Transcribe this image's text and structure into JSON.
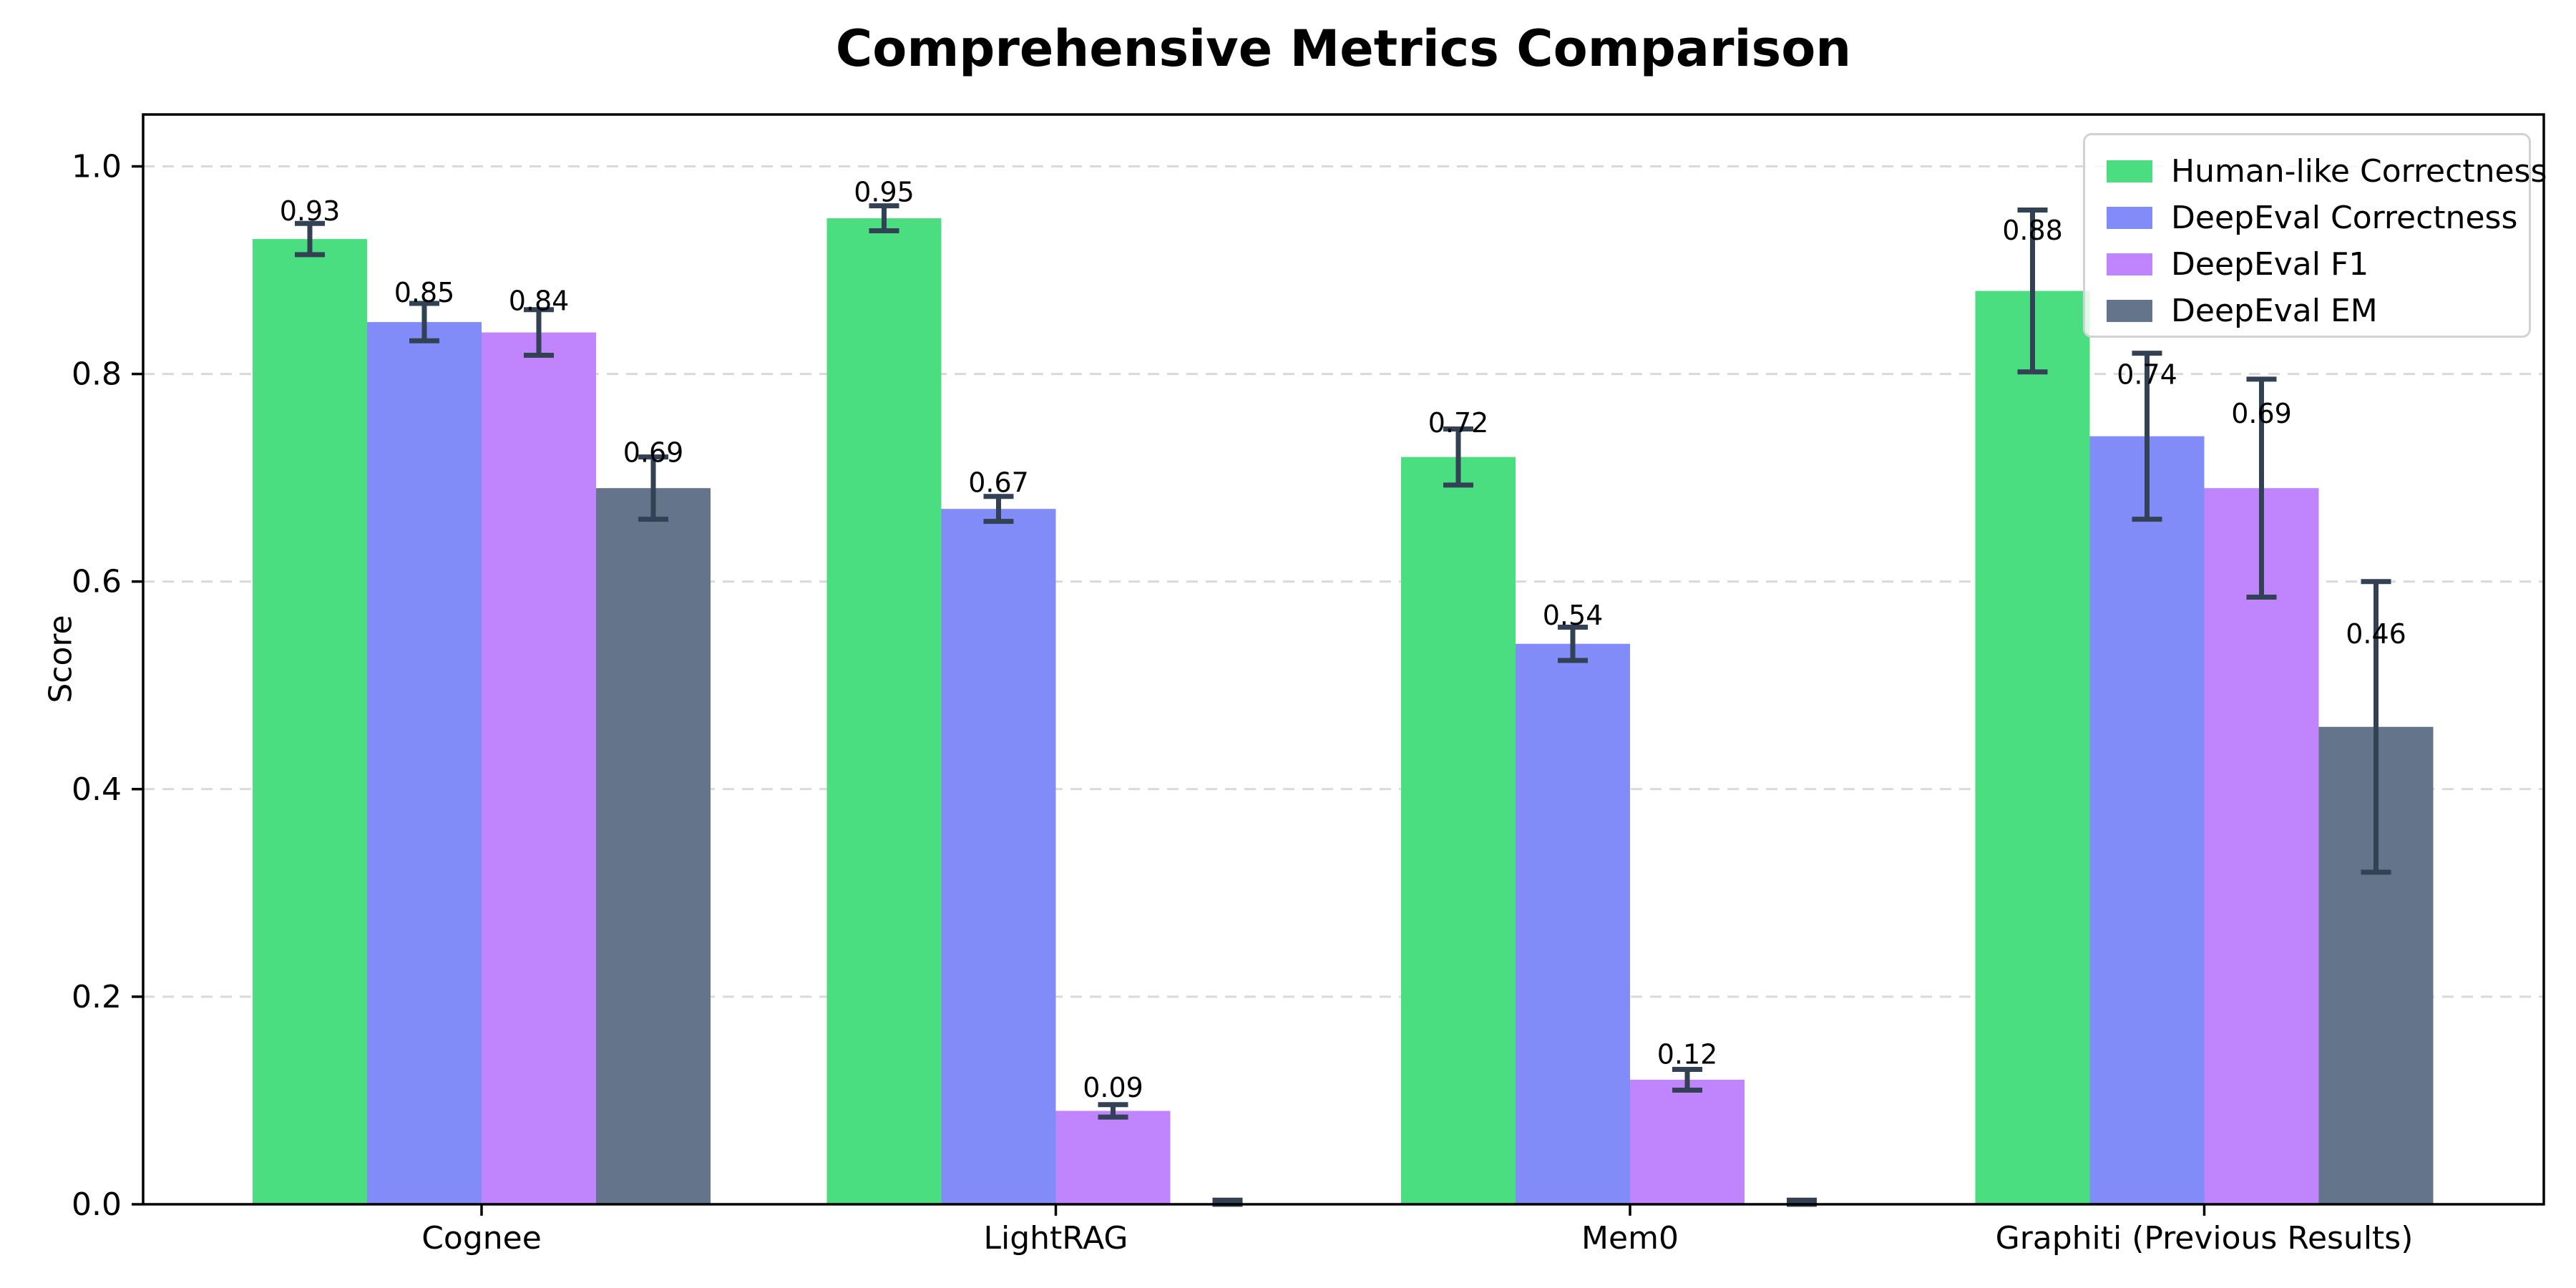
{
  "chart_data": {
    "type": "bar",
    "title": "Comprehensive Metrics Comparison",
    "ylabel": "Score",
    "xlabel": "",
    "categories": [
      "Cognee",
      "LightRAG",
      "Mem0",
      "Graphiti (Previous Results)"
    ],
    "series": [
      {
        "name": "Human-like Correctness",
        "color": "#4ade80",
        "values": [
          0.93,
          0.95,
          0.72,
          0.88
        ],
        "errors": [
          0.015,
          0.012,
          0.027,
          0.078
        ],
        "labels": [
          "0.93",
          "0.95",
          "0.72",
          "0.88"
        ]
      },
      {
        "name": "DeepEval Correctness",
        "color": "#818cf8",
        "values": [
          0.85,
          0.67,
          0.54,
          0.74
        ],
        "errors": [
          0.018,
          0.012,
          0.016,
          0.08
        ],
        "labels": [
          "0.85",
          "0.67",
          "0.54",
          "0.74"
        ]
      },
      {
        "name": "DeepEval F1",
        "color": "#c084fc",
        "values": [
          0.84,
          0.09,
          0.12,
          0.69
        ],
        "errors": [
          0.022,
          0.006,
          0.01,
          0.105
        ],
        "labels": [
          "0.84",
          "0.09",
          "0.12",
          "0.69"
        ]
      },
      {
        "name": "DeepEval EM",
        "color": "#64748b",
        "values": [
          0.69,
          0.0,
          0.0,
          0.46
        ],
        "errors": [
          0.03,
          0.004,
          0.004,
          0.14
        ],
        "labels": [
          "0.69",
          "",
          "",
          "0.46"
        ]
      }
    ],
    "ylim": [
      0,
      1.05
    ],
    "yticks": [
      "0.0",
      "0.2",
      "0.4",
      "0.6",
      "0.8",
      "1.0"
    ],
    "ytick_values": [
      0,
      0.2,
      0.4,
      0.6,
      0.8,
      1.0
    ],
    "grid": "horizontal dashed",
    "legend_position": "upper right",
    "error_bar_color": "#334155",
    "grid_color": "#d9d9d9",
    "axis_color": "#000000",
    "text_color": "#000000"
  }
}
